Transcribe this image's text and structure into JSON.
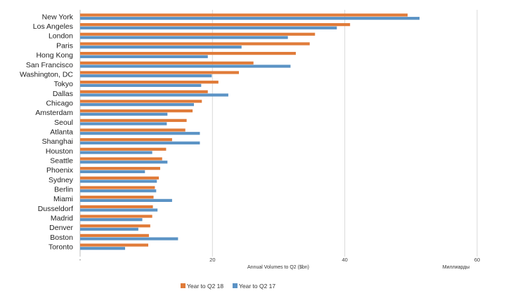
{
  "chart_data": {
    "type": "bar",
    "orientation": "horizontal",
    "categories": [
      "New York",
      "Los Angeles",
      "London",
      "Paris",
      "Hong Kong",
      "San Francisco",
      "Washington, DC",
      "Tokyo",
      "Dallas",
      "Chicago",
      "Amsterdam",
      "Seoul",
      "Atlanta",
      "Shanghai",
      "Houston",
      "Seattle",
      "Phoenix",
      "Sydney",
      "Berlin",
      "Miami",
      "Dusseldorf",
      "Madrid",
      "Denver",
      "Boston",
      "Toronto"
    ],
    "series": [
      {
        "name": "Year to Q2 18",
        "color": "#E07B39",
        "values": [
          49.5,
          40.8,
          35.5,
          34.7,
          32.6,
          26.2,
          24.0,
          20.9,
          19.3,
          18.4,
          17.0,
          16.1,
          15.9,
          13.9,
          13.0,
          12.4,
          12.1,
          11.9,
          11.3,
          11.1,
          11.0,
          10.9,
          10.6,
          10.4,
          10.3
        ]
      },
      {
        "name": "Year to Q2 17",
        "color": "#5B93C5",
        "values": [
          51.3,
          38.8,
          31.4,
          24.4,
          19.3,
          31.8,
          19.9,
          18.3,
          22.4,
          17.2,
          13.2,
          13.1,
          18.1,
          18.1,
          10.9,
          13.2,
          9.8,
          11.6,
          11.5,
          13.9,
          11.7,
          9.4,
          8.8,
          14.8,
          6.8
        ]
      }
    ],
    "xlim": [
      0,
      60
    ],
    "ticks": [
      {
        "value": 0,
        "label": "-"
      },
      {
        "value": 20,
        "label": "20"
      },
      {
        "value": 40,
        "label": "40"
      },
      {
        "value": 60,
        "label": "60"
      }
    ],
    "xlabel": "Annual Volumes to Q2 ($bn)",
    "unit_label": "Миллиарды",
    "grid": true,
    "legend_position": "bottom-left"
  }
}
